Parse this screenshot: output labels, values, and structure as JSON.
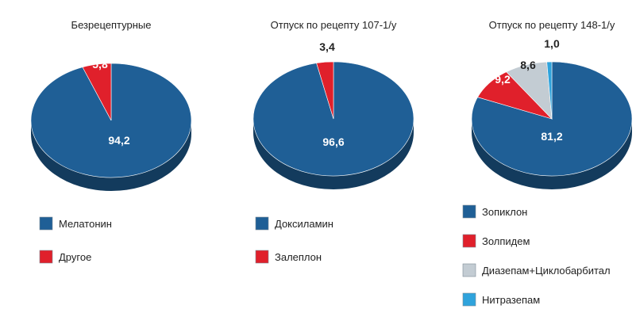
{
  "chart_data": [
    {
      "type": "pie",
      "title": "Безрецептурные",
      "slices": [
        {
          "label": "Мелатонин",
          "value": 94.2,
          "value_text": "94,2",
          "color": "#1f5f96"
        },
        {
          "label": "Другое",
          "value": 5.8,
          "value_text": "5,8",
          "color": "#e0202b"
        }
      ]
    },
    {
      "type": "pie",
      "title": "Отпуск по рецепту 107-1/у",
      "slices": [
        {
          "label": "Доксиламин",
          "value": 96.6,
          "value_text": "96,6",
          "color": "#1f5f96"
        },
        {
          "label": "Залеплон",
          "value": 3.4,
          "value_text": "3,4",
          "color": "#e0202b"
        }
      ]
    },
    {
      "type": "pie",
      "title": "Отпуск по рецепту 148-1/у",
      "slices": [
        {
          "label": "Зопиклон",
          "value": 81.2,
          "value_text": "81,2",
          "color": "#1f5f96"
        },
        {
          "label": "Золпидем",
          "value": 9.2,
          "value_text": "9,2",
          "color": "#e0202b"
        },
        {
          "label": "Диазепам+Циклобарбитал",
          "value": 8.6,
          "value_text": "8,6",
          "color": "#c3ccd3"
        },
        {
          "label": "Нитразепам",
          "value": 1.0,
          "value_text": "1,0",
          "color": "#2fa3dc"
        }
      ]
    }
  ]
}
